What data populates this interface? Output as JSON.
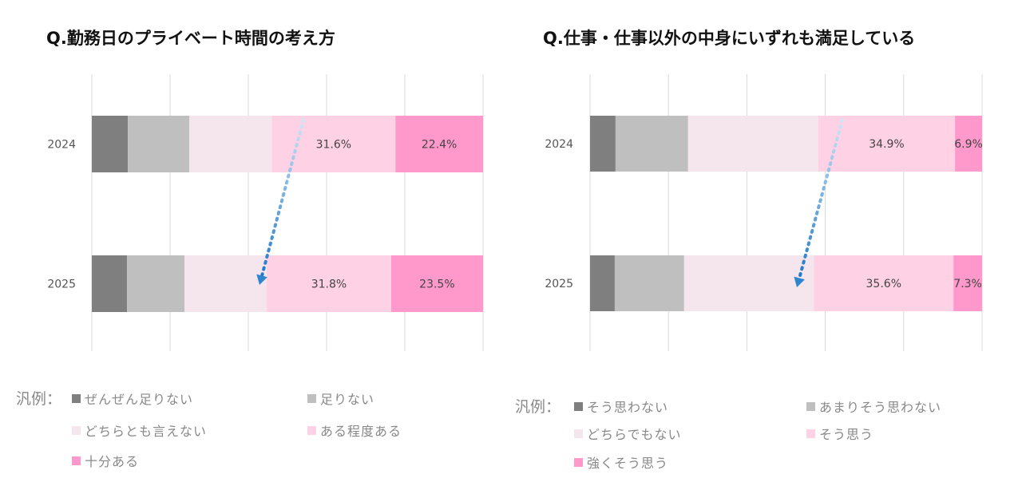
{
  "chart_data": [
    {
      "type": "bar",
      "orientation": "horizontal-stacked-100",
      "title": "Q.勤務日のプライベート時間の考え方",
      "categories": [
        "2024",
        "2025"
      ],
      "xlim": [
        0,
        100
      ],
      "grid": true,
      "series": [
        {
          "name": "ぜんぜん足りない",
          "color": "#7f7f7f",
          "values": [
            9.2,
            9.0
          ]
        },
        {
          "name": "足りない",
          "color": "#bfbfbf",
          "values": [
            15.7,
            14.7
          ]
        },
        {
          "name": "どちらとも言えない",
          "color": "#f5e5ed",
          "values": [
            21.1,
            21.0
          ]
        },
        {
          "name": "ある程度ある",
          "color": "#ffd1e5",
          "values": [
            31.6,
            31.8
          ],
          "labels": [
            "31.6%",
            "31.8%"
          ]
        },
        {
          "name": "十分ある",
          "color": "#ff99cc",
          "values": [
            22.4,
            23.5
          ],
          "labels": [
            "22.4%",
            "23.5%"
          ]
        }
      ],
      "legend_title": "汎例：",
      "legend_placement": "bottom"
    },
    {
      "type": "bar",
      "orientation": "horizontal-stacked-100",
      "title": "Q.仕事・仕事以外の中身にいずれも満足している",
      "categories": [
        "2024",
        "2025"
      ],
      "xlim": [
        0,
        100
      ],
      "grid": true,
      "series": [
        {
          "name": "そう思わない",
          "color": "#7f7f7f",
          "values": [
            6.5,
            6.3
          ]
        },
        {
          "name": "あまりそう思わない",
          "color": "#bfbfbf",
          "values": [
            18.5,
            17.7
          ]
        },
        {
          "name": "どちらでもない",
          "color": "#f5e5ed",
          "values": [
            33.2,
            33.1
          ]
        },
        {
          "name": "そう思う",
          "color": "#ffd1e5",
          "values": [
            34.9,
            35.6
          ],
          "labels": [
            "34.9%",
            "35.6%"
          ]
        },
        {
          "name": "強くそう思う",
          "color": "#ff99cc",
          "values": [
            6.9,
            7.3
          ],
          "labels": [
            "6.9%",
            "7.3%"
          ]
        }
      ],
      "legend_title": "汎例：",
      "legend_placement": "bottom"
    }
  ],
  "arrow_color": "#2f86d0"
}
